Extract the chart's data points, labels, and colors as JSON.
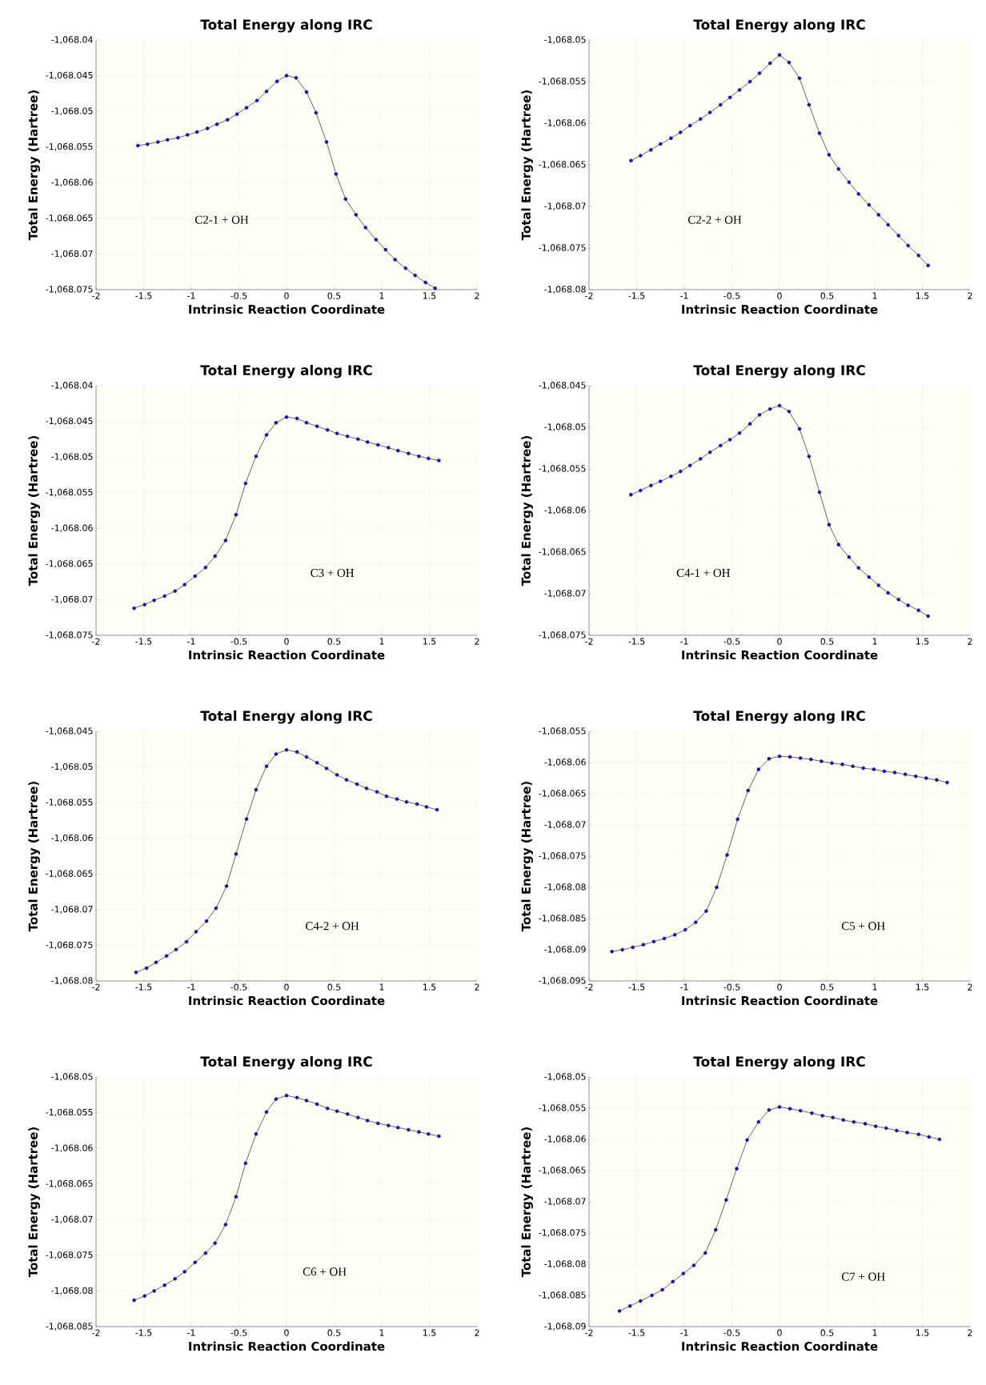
{
  "chart_data": [
    {
      "type": "line",
      "title": "Total Energy along IRC",
      "xlabel": "Intrinsic Reaction Coordinate",
      "ylabel": "Total Energy (Hartree)",
      "annotations": [
        "C2-1 + OH"
      ],
      "grid": true,
      "marker": "circle",
      "xlim": [
        -2,
        2
      ],
      "xticks": [
        -2,
        -1.5,
        -1,
        -0.5,
        0,
        0.5,
        1,
        1.5,
        2
      ],
      "ylim": [
        -1068.075,
        -1068.04
      ],
      "yticks": [
        {
          "value": -1068.075,
          "label": "-1,068.075"
        },
        {
          "value": -1068.07,
          "label": "-1,068.07"
        },
        {
          "value": -1068.065,
          "label": "-1,068.065"
        },
        {
          "value": -1068.06,
          "label": "-1,068.06"
        },
        {
          "value": -1068.055,
          "label": "-1,068.055"
        },
        {
          "value": -1068.05,
          "label": "-1,068.05"
        },
        {
          "value": -1068.045,
          "label": "-1,068.045"
        },
        {
          "value": -1068.04,
          "label": "-1,068.04"
        }
      ],
      "series": [
        {
          "color": "#1414b4",
          "x": [
            -1.56,
            -1.46,
            -1.35,
            -1.25,
            -1.14,
            -1.04,
            -0.94,
            -0.83,
            -0.73,
            -0.62,
            -0.52,
            -0.42,
            -0.31,
            -0.21,
            -0.1,
            0,
            0.1,
            0.21,
            0.31,
            0.42,
            0.52,
            0.62,
            0.73,
            0.83,
            0.94,
            1.04,
            1.14,
            1.25,
            1.35,
            1.46,
            1.56
          ],
          "values": [
            -1068.0548,
            -1068.0546,
            -1068.0543,
            -1068.054,
            -1068.0537,
            -1068.0533,
            -1068.0529,
            -1068.0524,
            -1068.0518,
            -1068.0512,
            -1068.0504,
            -1068.0495,
            -1068.0485,
            -1068.0472,
            -1068.0458,
            -1068.045,
            -1068.0453,
            -1068.0473,
            -1068.0502,
            -1068.0543,
            -1068.0588,
            -1068.0623,
            -1068.0645,
            -1068.0663,
            -1068.068,
            -1068.0694,
            -1068.0708,
            -1068.072,
            -1068.073,
            -1068.074,
            -1068.0748
          ]
        }
      ]
    },
    {
      "type": "line",
      "title": "Total Energy along IRC",
      "xlabel": "Intrinsic Reaction Coordinate",
      "ylabel": "Total Energy (Hartree)",
      "annotations": [
        "C2-2 + OH"
      ],
      "grid": true,
      "marker": "circle",
      "xlim": [
        -2,
        2
      ],
      "xticks": [
        -2,
        -1.5,
        -1,
        -0.5,
        0,
        0.5,
        1,
        1.5,
        2
      ],
      "ylim": [
        -1068.08,
        -1068.05
      ],
      "yticks": [
        {
          "value": -1068.08,
          "label": "-1,068.08"
        },
        {
          "value": -1068.075,
          "label": "-1,068.075"
        },
        {
          "value": -1068.07,
          "label": "-1,068.07"
        },
        {
          "value": -1068.065,
          "label": "-1,068.065"
        },
        {
          "value": -1068.06,
          "label": "-1,068.06"
        },
        {
          "value": -1068.055,
          "label": "-1,068.055"
        },
        {
          "value": -1068.05,
          "label": "-1,068.05"
        }
      ],
      "series": [
        {
          "color": "#1414b4",
          "x": [
            -1.56,
            -1.46,
            -1.35,
            -1.25,
            -1.14,
            -1.04,
            -0.94,
            -0.83,
            -0.73,
            -0.62,
            -0.52,
            -0.42,
            -0.31,
            -0.21,
            -0.1,
            0,
            0.1,
            0.21,
            0.31,
            0.42,
            0.52,
            0.62,
            0.73,
            0.83,
            0.94,
            1.04,
            1.14,
            1.25,
            1.35,
            1.46,
            1.56
          ],
          "values": [
            -1068.0645,
            -1068.0639,
            -1068.0632,
            -1068.0625,
            -1068.0618,
            -1068.0611,
            -1068.0603,
            -1068.0595,
            -1068.0587,
            -1068.0578,
            -1068.0569,
            -1068.056,
            -1068.055,
            -1068.054,
            -1068.0528,
            -1068.0518,
            -1068.0527,
            -1068.0546,
            -1068.0578,
            -1068.0612,
            -1068.0638,
            -1068.0655,
            -1068.0671,
            -1068.0685,
            -1068.0698,
            -1068.071,
            -1068.0722,
            -1068.0735,
            -1068.0747,
            -1068.0759,
            -1068.0771
          ]
        }
      ]
    },
    {
      "type": "line",
      "title": "Total Energy along IRC",
      "xlabel": "Intrinsic Reaction Coordinate",
      "ylabel": "Total Energy (Hartree)",
      "annotations": [
        "C3 + OH"
      ],
      "grid": true,
      "marker": "circle",
      "xlim": [
        -2,
        2
      ],
      "xticks": [
        -2,
        -1.5,
        -1,
        -0.5,
        0,
        0.5,
        1,
        1.5,
        2
      ],
      "ylim": [
        -1068.075,
        -1068.04
      ],
      "yticks": [
        {
          "value": -1068.075,
          "label": "-1,068.075"
        },
        {
          "value": -1068.07,
          "label": "-1,068.07"
        },
        {
          "value": -1068.065,
          "label": "-1,068.065"
        },
        {
          "value": -1068.06,
          "label": "-1,068.06"
        },
        {
          "value": -1068.055,
          "label": "-1,068.055"
        },
        {
          "value": -1068.05,
          "label": "-1,068.05"
        },
        {
          "value": -1068.045,
          "label": "-1,068.045"
        },
        {
          "value": -1068.04,
          "label": "-1,068.04"
        }
      ],
      "series": [
        {
          "color": "#1414b4",
          "x": [
            -1.6,
            -1.49,
            -1.39,
            -1.28,
            -1.17,
            -1.07,
            -0.96,
            -0.85,
            -0.75,
            -0.64,
            -0.53,
            -0.43,
            -0.32,
            -0.21,
            -0.11,
            0,
            0.11,
            0.21,
            0.32,
            0.43,
            0.53,
            0.64,
            0.75,
            0.85,
            0.96,
            1.07,
            1.17,
            1.28,
            1.39,
            1.49,
            1.6
          ],
          "values": [
            -1068.0712,
            -1068.0707,
            -1068.0701,
            -1068.0695,
            -1068.0688,
            -1068.0679,
            -1068.0667,
            -1068.0655,
            -1068.0639,
            -1068.0617,
            -1068.0581,
            -1068.0537,
            -1068.0499,
            -1068.0469,
            -1068.0452,
            -1068.0444,
            -1068.0446,
            -1068.0452,
            -1068.0457,
            -1068.0462,
            -1068.0467,
            -1068.0471,
            -1068.0475,
            -1068.0479,
            -1068.0483,
            -1068.0487,
            -1068.0491,
            -1068.0495,
            -1068.0499,
            -1068.0502,
            -1068.0505
          ]
        }
      ]
    },
    {
      "type": "line",
      "title": "Total Energy along IRC",
      "xlabel": "Intrinsic Reaction Coordinate",
      "ylabel": "Total Energy (Hartree)",
      "annotations": [
        "C4-1 + OH"
      ],
      "grid": true,
      "marker": "circle",
      "xlim": [
        -2,
        2
      ],
      "xticks": [
        -2,
        -1.5,
        -1,
        -0.5,
        0,
        0.5,
        1,
        1.5,
        2
      ],
      "ylim": [
        -1068.075,
        -1068.045
      ],
      "yticks": [
        {
          "value": -1068.075,
          "label": "-1,068.075"
        },
        {
          "value": -1068.07,
          "label": "-1,068.07"
        },
        {
          "value": -1068.065,
          "label": "-1,068.065"
        },
        {
          "value": -1068.06,
          "label": "-1,068.06"
        },
        {
          "value": -1068.055,
          "label": "-1,068.055"
        },
        {
          "value": -1068.05,
          "label": "-1,068.05"
        },
        {
          "value": -1068.045,
          "label": "-1,068.045"
        }
      ],
      "series": [
        {
          "color": "#1414b4",
          "x": [
            -1.56,
            -1.46,
            -1.35,
            -1.25,
            -1.14,
            -1.04,
            -0.94,
            -0.83,
            -0.73,
            -0.62,
            -0.52,
            -0.42,
            -0.31,
            -0.21,
            -0.1,
            0,
            0.1,
            0.21,
            0.31,
            0.42,
            0.52,
            0.62,
            0.73,
            0.83,
            0.94,
            1.04,
            1.14,
            1.25,
            1.35,
            1.46,
            1.56
          ],
          "values": [
            -1068.0581,
            -1068.0576,
            -1068.057,
            -1068.0565,
            -1068.0559,
            -1068.0553,
            -1068.0546,
            -1068.0538,
            -1068.053,
            -1068.0522,
            -1068.0515,
            -1068.0507,
            -1068.0496,
            -1068.0485,
            -1068.0478,
            -1068.0474,
            -1068.0481,
            -1068.0502,
            -1068.0535,
            -1068.0578,
            -1068.0617,
            -1068.0641,
            -1068.0656,
            -1068.0669,
            -1068.068,
            -1068.069,
            -1068.0699,
            -1068.0707,
            -1068.0714,
            -1068.072,
            -1068.0727
          ]
        }
      ]
    },
    {
      "type": "line",
      "title": "Total Energy along IRC",
      "xlabel": "Intrinsic Reaction Coordinate",
      "ylabel": "Total Energy (Hartree)",
      "annotations": [
        "C4-2 + OH"
      ],
      "grid": true,
      "marker": "circle",
      "xlim": [
        -2,
        2
      ],
      "xticks": [
        -2,
        -1.5,
        -1,
        -0.5,
        0,
        0.5,
        1,
        1.5,
        2
      ],
      "ylim": [
        -1068.08,
        -1068.045
      ],
      "yticks": [
        {
          "value": -1068.08,
          "label": "-1,068.08"
        },
        {
          "value": -1068.075,
          "label": "-1,068.075"
        },
        {
          "value": -1068.07,
          "label": "-1,068.07"
        },
        {
          "value": -1068.065,
          "label": "-1,068.065"
        },
        {
          "value": -1068.06,
          "label": "-1,068.06"
        },
        {
          "value": -1068.055,
          "label": "-1,068.055"
        },
        {
          "value": -1068.05,
          "label": "-1,068.05"
        },
        {
          "value": -1068.045,
          "label": "-1,068.045"
        }
      ],
      "series": [
        {
          "color": "#1414b4",
          "x": [
            -1.58,
            -1.47,
            -1.37,
            -1.26,
            -1.16,
            -1.05,
            -0.95,
            -0.84,
            -0.74,
            -0.63,
            -0.53,
            -0.42,
            -0.32,
            -0.21,
            -0.11,
            0,
            0.11,
            0.21,
            0.32,
            0.42,
            0.53,
            0.63,
            0.74,
            0.84,
            0.95,
            1.05,
            1.16,
            1.26,
            1.37,
            1.47,
            1.58
          ],
          "values": [
            -1068.0788,
            -1068.0782,
            -1068.0774,
            -1068.0765,
            -1068.0756,
            -1068.0745,
            -1068.0731,
            -1068.0716,
            -1068.0698,
            -1068.0667,
            -1068.0622,
            -1068.0573,
            -1068.0532,
            -1068.0499,
            -1068.0482,
            -1068.0476,
            -1068.0479,
            -1068.0486,
            -1068.0494,
            -1068.0502,
            -1068.0511,
            -1068.0518,
            -1068.0524,
            -1068.053,
            -1068.0535,
            -1068.0541,
            -1068.0545,
            -1068.0549,
            -1068.0552,
            -1068.0556,
            -1068.056
          ]
        }
      ]
    },
    {
      "type": "line",
      "title": "Total Energy along IRC",
      "xlabel": "Intrinsic Reaction Coordinate",
      "ylabel": "Total Energy (Hartree)",
      "annotations": [
        "C5 + OH"
      ],
      "grid": true,
      "marker": "circle",
      "xlim": [
        -2,
        2
      ],
      "xticks": [
        -2,
        -1.5,
        -1,
        -0.5,
        0,
        0.5,
        1,
        1.5,
        2
      ],
      "ylim": [
        -1068.095,
        -1068.055
      ],
      "yticks": [
        {
          "value": -1068.095,
          "label": "-1,068.095"
        },
        {
          "value": -1068.09,
          "label": "-1,068.09"
        },
        {
          "value": -1068.085,
          "label": "-1,068.085"
        },
        {
          "value": -1068.08,
          "label": "-1,068.08"
        },
        {
          "value": -1068.075,
          "label": "-1,068.075"
        },
        {
          "value": -1068.07,
          "label": "-1,068.07"
        },
        {
          "value": -1068.065,
          "label": "-1,068.065"
        },
        {
          "value": -1068.06,
          "label": "-1,068.06"
        },
        {
          "value": -1068.055,
          "label": "-1,068.055"
        }
      ],
      "series": [
        {
          "color": "#1414b4",
          "x": [
            -1.76,
            -1.65,
            -1.54,
            -1.43,
            -1.32,
            -1.21,
            -1.1,
            -0.99,
            -0.88,
            -0.77,
            -0.66,
            -0.55,
            -0.44,
            -0.33,
            -0.22,
            -0.11,
            0,
            0.11,
            0.22,
            0.33,
            0.44,
            0.55,
            0.66,
            0.77,
            0.88,
            0.99,
            1.1,
            1.21,
            1.32,
            1.43,
            1.54,
            1.65,
            1.76
          ],
          "values": [
            -1068.0903,
            -1068.09,
            -1068.0896,
            -1068.0892,
            -1068.0887,
            -1068.0882,
            -1068.0876,
            -1068.0868,
            -1068.0856,
            -1068.0838,
            -1068.08,
            -1068.0748,
            -1068.0691,
            -1068.0645,
            -1068.0611,
            -1068.0594,
            -1068.059,
            -1068.0591,
            -1068.0593,
            -1068.0595,
            -1068.0598,
            -1068.0601,
            -1068.0603,
            -1068.0606,
            -1068.0609,
            -1068.0611,
            -1068.0614,
            -1068.0616,
            -1068.0619,
            -1068.0622,
            -1068.0625,
            -1068.0628,
            -1068.0632
          ]
        }
      ]
    },
    {
      "type": "line",
      "title": "Total Energy along IRC",
      "xlabel": "Intrinsic Reaction Coordinate",
      "ylabel": "Total Energy (Hartree)",
      "annotations": [
        "C6 + OH"
      ],
      "grid": true,
      "marker": "circle",
      "xlim": [
        -2,
        2
      ],
      "xticks": [
        -2,
        -1.5,
        -1,
        -0.5,
        0,
        0.5,
        1,
        1.5,
        2
      ],
      "ylim": [
        -1068.085,
        -1068.05
      ],
      "yticks": [
        {
          "value": -1068.085,
          "label": "-1,068.085"
        },
        {
          "value": -1068.08,
          "label": "-1,068.08"
        },
        {
          "value": -1068.075,
          "label": "-1,068.075"
        },
        {
          "value": -1068.07,
          "label": "-1,068.07"
        },
        {
          "value": -1068.065,
          "label": "-1,068.065"
        },
        {
          "value": -1068.06,
          "label": "-1,068.06"
        },
        {
          "value": -1068.055,
          "label": "-1,068.055"
        },
        {
          "value": -1068.05,
          "label": "-1,068.05"
        }
      ],
      "series": [
        {
          "color": "#1414b4",
          "x": [
            -1.6,
            -1.49,
            -1.39,
            -1.28,
            -1.17,
            -1.07,
            -0.96,
            -0.85,
            -0.75,
            -0.64,
            -0.53,
            -0.43,
            -0.32,
            -0.21,
            -0.11,
            0,
            0.11,
            0.21,
            0.32,
            0.43,
            0.53,
            0.64,
            0.75,
            0.85,
            0.96,
            1.07,
            1.17,
            1.28,
            1.39,
            1.49,
            1.6
          ],
          "values": [
            -1068.0813,
            -1068.0807,
            -1068.08,
            -1068.0792,
            -1068.0783,
            -1068.0773,
            -1068.076,
            -1068.0747,
            -1068.0733,
            -1068.0707,
            -1068.0668,
            -1068.0621,
            -1068.058,
            -1068.0549,
            -1068.0531,
            -1068.0526,
            -1068.0529,
            -1068.0533,
            -1068.0538,
            -1068.0544,
            -1068.0548,
            -1068.0552,
            -1068.0557,
            -1068.0561,
            -1068.0565,
            -1068.0568,
            -1068.0571,
            -1068.0574,
            -1068.0577,
            -1068.058,
            -1068.0583
          ]
        }
      ]
    },
    {
      "type": "line",
      "title": "Total Energy along IRC",
      "xlabel": "Intrinsic Reaction Coordinate",
      "ylabel": "Total Energy (Hartree)",
      "annotations": [
        "C7 + OH"
      ],
      "grid": true,
      "marker": "circle",
      "xlim": [
        -2,
        2
      ],
      "xticks": [
        -2,
        -1.5,
        -1,
        -0.5,
        0,
        0.5,
        1,
        1.5,
        2
      ],
      "ylim": [
        -1068.09,
        -1068.05
      ],
      "yticks": [
        {
          "value": -1068.09,
          "label": "-1,068.09"
        },
        {
          "value": -1068.085,
          "label": "-1,068.085"
        },
        {
          "value": -1068.08,
          "label": "-1,068.08"
        },
        {
          "value": -1068.075,
          "label": "-1,068.075"
        },
        {
          "value": -1068.07,
          "label": "-1,068.07"
        },
        {
          "value": -1068.065,
          "label": "-1,068.065"
        },
        {
          "value": -1068.06,
          "label": "-1,068.06"
        },
        {
          "value": -1068.055,
          "label": "-1,068.055"
        },
        {
          "value": -1068.05,
          "label": "-1,068.05"
        }
      ],
      "series": [
        {
          "color": "#1414b4",
          "x": [
            -1.68,
            -1.57,
            -1.46,
            -1.34,
            -1.23,
            -1.12,
            -1.01,
            -0.9,
            -0.78,
            -0.67,
            -0.56,
            -0.45,
            -0.34,
            -0.22,
            -0.11,
            0,
            0.11,
            0.22,
            0.34,
            0.45,
            0.56,
            0.67,
            0.78,
            0.9,
            1.01,
            1.12,
            1.23,
            1.34,
            1.46,
            1.57,
            1.68
          ],
          "values": [
            -1068.0875,
            -1068.0867,
            -1068.0859,
            -1068.085,
            -1068.0841,
            -1068.0828,
            -1068.0815,
            -1068.0802,
            -1068.0782,
            -1068.0745,
            -1068.0697,
            -1068.0647,
            -1068.0601,
            -1068.0572,
            -1068.0553,
            -1068.0548,
            -1068.0551,
            -1068.0554,
            -1068.0558,
            -1068.0562,
            -1068.0565,
            -1068.0569,
            -1068.0572,
            -1068.0575,
            -1068.0579,
            -1068.0582,
            -1068.0586,
            -1068.0589,
            -1068.0592,
            -1068.0596,
            -1068.06
          ]
        }
      ]
    }
  ]
}
